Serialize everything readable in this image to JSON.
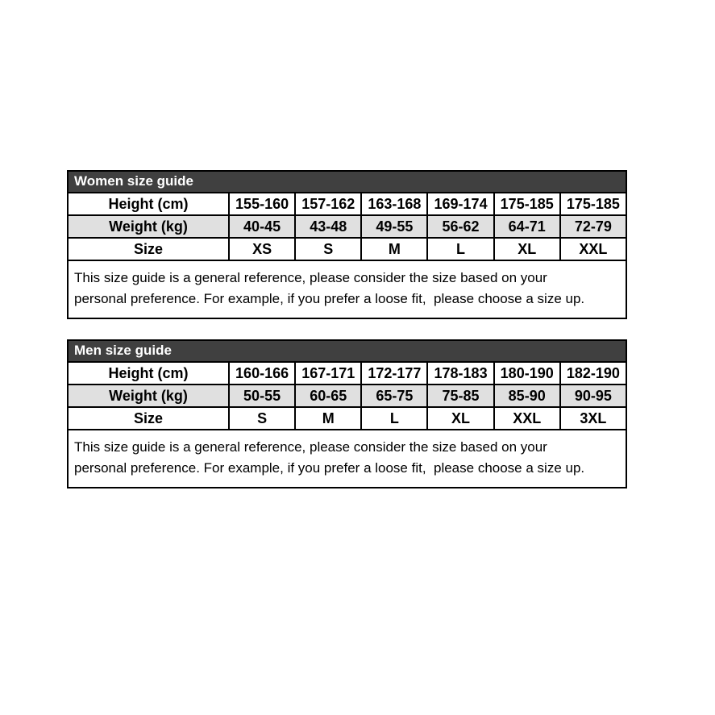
{
  "page": {
    "background": "#ffffff"
  },
  "colors": {
    "title_bar_bg": "#404040",
    "title_bar_text": "#ffffff",
    "stripe_row_bg": "#e0e0e0",
    "border": "#000000",
    "text": "#000000"
  },
  "chart_data": [
    {
      "type": "table",
      "title": "Women size guide",
      "rows": [
        {
          "label": "Height (cm)",
          "values": [
            "155-160",
            "157-162",
            "163-168",
            "169-174",
            "175-185",
            "175-185"
          ]
        },
        {
          "label": "Weight (kg)",
          "values": [
            "40-45",
            "43-48",
            "49-55",
            "56-62",
            "64-71",
            "72-79"
          ]
        },
        {
          "label": "Size",
          "values": [
            "XS",
            "S",
            "M",
            "L",
            "XL",
            "XXL"
          ]
        }
      ],
      "note_lines": [
        "This size guide is a general reference, please consider the size based on your",
        "personal preference. For example, if you prefer a loose fit,  please choose a size up."
      ]
    },
    {
      "type": "table",
      "title": "Men size guide",
      "rows": [
        {
          "label": "Height (cm)",
          "values": [
            "160-166",
            "167-171",
            "172-177",
            "178-183",
            "180-190",
            "182-190"
          ]
        },
        {
          "label": "Weight (kg)",
          "values": [
            "50-55",
            "60-65",
            "65-75",
            "75-85",
            "85-90",
            "90-95"
          ]
        },
        {
          "label": "Size",
          "values": [
            "S",
            "M",
            "L",
            "XL",
            "XXL",
            "3XL"
          ]
        }
      ],
      "note_lines": [
        "This size guide is a general reference, please consider the size based on your",
        "personal preference. For example, if you prefer a loose fit,  please choose a size up."
      ]
    }
  ]
}
